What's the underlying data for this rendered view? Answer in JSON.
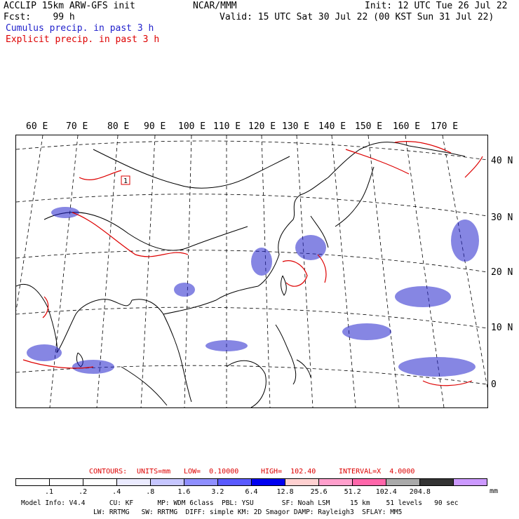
{
  "header": {
    "line1_left": "ACCLIP 15km ARW-GFS init",
    "line1_center": "NCAR/MMM",
    "line1_right": "Init: 12 UTC Tue 26 Jul 22",
    "line2_left": "Fcst:    99 h",
    "line2_right": "Valid: 15 UTC Sat 30 Jul 22 (00 KST Sun 31 Jul 22)",
    "cumulus_label": "Cumulus precip. in past 3 h",
    "explicit_label": "Explicit precip. in past 3 h"
  },
  "colors": {
    "cumulus": "#2222cc",
    "explicit": "#dd0000",
    "map_line": "#000000",
    "grid_line": "#000000"
  },
  "map": {
    "lon_labels": [
      "60 E",
      "70 E",
      "80 E",
      "90 E",
      "100 E",
      "110 E",
      "120 E",
      "130 E",
      "140 E",
      "150 E",
      "160 E",
      "170 E"
    ],
    "lat_labels": [
      "40 N",
      "30 N",
      "20 N",
      "10 N",
      "0"
    ],
    "marker_label": "1"
  },
  "contours": {
    "text_contours": "CONTOURS:",
    "text_units": "UNITS=mm",
    "text_low": "LOW=  0.10000",
    "text_high": "HIGH=  102.40",
    "text_interval": "INTERVAL=X  4.0000"
  },
  "colorbar": {
    "colors": [
      "#ffffff",
      "#ffffff",
      "#ffffff",
      "#ebebff",
      "#c6c6ff",
      "#8f8fff",
      "#5a5aff",
      "#0000f0",
      "#ffd0d0",
      "#ff9fcc",
      "#ff66aa",
      "#aaaaaa",
      "#333333",
      "#cc99ff"
    ],
    "labels": [
      ".1",
      ".2",
      ".4",
      ".8",
      "1.6",
      "3.2",
      "6.4",
      "12.8",
      "25.6",
      "51.2",
      "102.4",
      "204.8"
    ],
    "unit": "mm"
  },
  "footer": {
    "line1": "Model Info: V4.4      CU: KF      MP: WDM 6class  PBL: YSU       SF: Noah LSM     15 km    51 levels   90 sec",
    "line2": "                  LW: RRTMG   SW: RRTMG  DIFF: simple KM: 2D Smagor DAMP: Rayleigh3  SFLAY: MM5"
  }
}
